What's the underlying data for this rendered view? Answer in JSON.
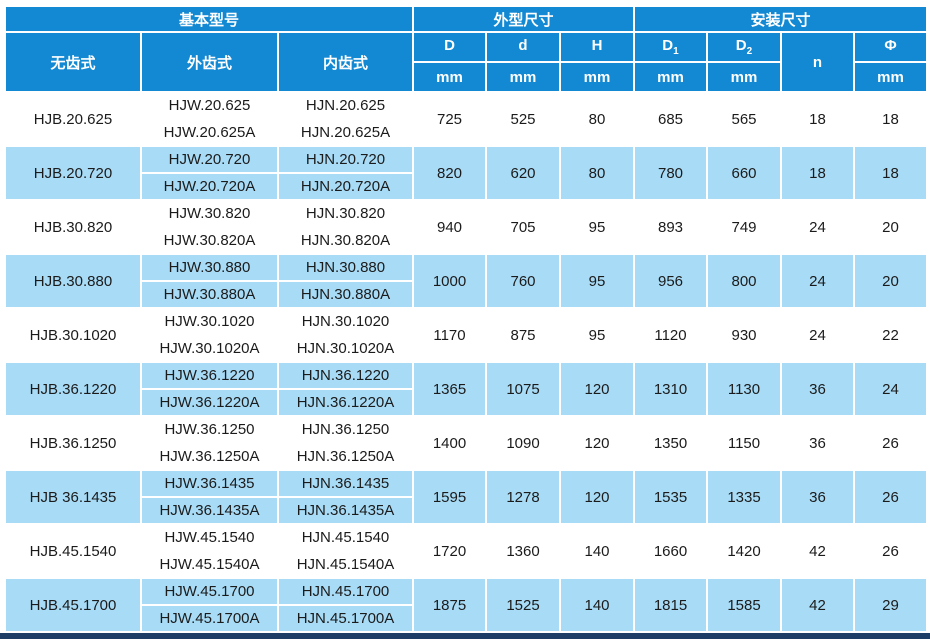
{
  "colors": {
    "header_blue": "#1289d2",
    "row_alt_blue": "#a8dbf6",
    "row_white": "#ffffff",
    "accent_bar_navy": "#1d3c66",
    "text_dark": "#1b1b1b",
    "header_text": "#ffffff"
  },
  "table": {
    "header": {
      "groups": [
        {
          "label": "基本型号",
          "colspan": 3
        },
        {
          "label": "外型尺寸",
          "colspan": 3
        },
        {
          "label": "安装尺寸",
          "colspan": 4
        }
      ],
      "model_columns": [
        "无齿式",
        "外齿式",
        "内齿式"
      ],
      "dim_columns": [
        {
          "base": "D",
          "sub": ""
        },
        {
          "base": "d",
          "sub": ""
        },
        {
          "base": "H",
          "sub": ""
        },
        {
          "base": "D",
          "sub": "1"
        },
        {
          "base": "D",
          "sub": "2"
        },
        {
          "base": "n",
          "sub": ""
        },
        {
          "base": "Φ",
          "sub": ""
        }
      ],
      "unit": "mm"
    },
    "rows": [
      {
        "wuchi": "HJB.20.625",
        "waichi": [
          "HJW.20.625",
          "HJW.20.625A"
        ],
        "neichi": [
          "HJN.20.625",
          "HJN.20.625A"
        ],
        "values": [
          "725",
          "525",
          "80",
          "685",
          "565",
          "18",
          "18"
        ]
      },
      {
        "wuchi": "HJB.20.720",
        "waichi": [
          "HJW.20.720",
          "HJW.20.720A"
        ],
        "neichi": [
          "HJN.20.720",
          "HJN.20.720A"
        ],
        "values": [
          "820",
          "620",
          "80",
          "780",
          "660",
          "18",
          "18"
        ]
      },
      {
        "wuchi": "HJB.30.820",
        "waichi": [
          "HJW.30.820",
          "HJW.30.820A"
        ],
        "neichi": [
          "HJN.30.820",
          "HJN.30.820A"
        ],
        "values": [
          "940",
          "705",
          "95",
          "893",
          "749",
          "24",
          "20"
        ]
      },
      {
        "wuchi": "HJB.30.880",
        "waichi": [
          "HJW.30.880",
          "HJW.30.880A"
        ],
        "neichi": [
          "HJN.30.880",
          "HJN.30.880A"
        ],
        "values": [
          "1000",
          "760",
          "95",
          "956",
          "800",
          "24",
          "20"
        ]
      },
      {
        "wuchi": "HJB.30.1020",
        "waichi": [
          "HJW.30.1020",
          "HJW.30.1020A"
        ],
        "neichi": [
          "HJN.30.1020",
          "HJN.30.1020A"
        ],
        "values": [
          "1170",
          "875",
          "95",
          "1120",
          "930",
          "24",
          "22"
        ]
      },
      {
        "wuchi": "HJB.36.1220",
        "waichi": [
          "HJW.36.1220",
          "HJW.36.1220A"
        ],
        "neichi": [
          "HJN.36.1220",
          "HJN.36.1220A"
        ],
        "values": [
          "1365",
          "1075",
          "120",
          "1310",
          "1130",
          "36",
          "24"
        ]
      },
      {
        "wuchi": "HJB.36.1250",
        "waichi": [
          "HJW.36.1250",
          "HJW.36.1250A"
        ],
        "neichi": [
          "HJN.36.1250",
          "HJN.36.1250A"
        ],
        "values": [
          "1400",
          "1090",
          "120",
          "1350",
          "1150",
          "36",
          "26"
        ]
      },
      {
        "wuchi": "HJB 36.1435",
        "waichi": [
          "HJW.36.1435",
          "HJW.36.1435A"
        ],
        "neichi": [
          "HJN.36.1435",
          "HJN.36.1435A"
        ],
        "values": [
          "1595",
          "1278",
          "120",
          "1535",
          "1335",
          "36",
          "26"
        ]
      },
      {
        "wuchi": "HJB.45.1540",
        "waichi": [
          "HJW.45.1540",
          "HJW.45.1540A"
        ],
        "neichi": [
          "HJN.45.1540",
          "HJN.45.1540A"
        ],
        "values": [
          "1720",
          "1360",
          "140",
          "1660",
          "1420",
          "42",
          "26"
        ]
      },
      {
        "wuchi": "HJB.45.1700",
        "waichi": [
          "HJW.45.1700",
          "HJW.45.1700A"
        ],
        "neichi": [
          "HJN.45.1700",
          "HJN.45.1700A"
        ],
        "values": [
          "1875",
          "1525",
          "140",
          "1815",
          "1585",
          "42",
          "29"
        ]
      }
    ]
  }
}
